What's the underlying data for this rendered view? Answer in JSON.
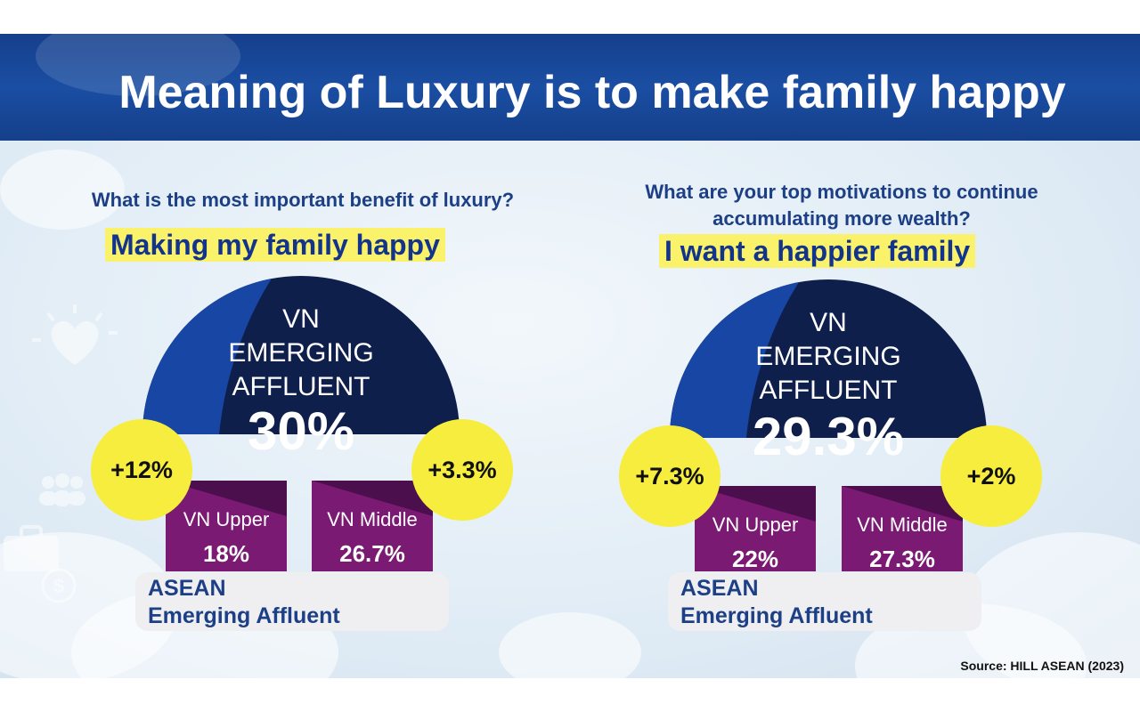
{
  "title": "Meaning of Luxury is to make family happy",
  "source": "Source: HILL ASEAN (2023)",
  "colors": {
    "banner": "#1a4ea3",
    "dome_navy": "#0f1f4b",
    "dome_accent_blue": "#1846a4",
    "bar_purple": "#7a1a73",
    "bubble_yellow": "#f6ed3e",
    "highlight_yellow": "#faf26a",
    "question_text": "#1c3f86"
  },
  "background_icons": [
    "heart-icon",
    "people-icon",
    "briefcase-icon",
    "dollar-coin-icon"
  ],
  "chart_data": [
    {
      "type": "bar",
      "question": "What is the most important benefit of luxury?",
      "answer": "Making my family happy",
      "main": {
        "label_lines": [
          "VN",
          "EMERGING",
          "AFFLUENT"
        ],
        "value": 30,
        "display": "30%"
      },
      "categories": [
        "VN Upper",
        "VN Middle"
      ],
      "values": [
        18,
        26.7
      ],
      "value_labels": [
        "18%",
        "26.7%"
      ],
      "differences": [
        "+12%",
        "+3.3%"
      ],
      "base_label_lines": [
        "ASEAN",
        "Emerging Affluent"
      ]
    },
    {
      "type": "bar",
      "question_lines": [
        "What are your top motivations to continue",
        "accumulating more wealth?"
      ],
      "answer": "I want a happier family",
      "main": {
        "label_lines": [
          "VN",
          "EMERGING",
          "AFFLUENT"
        ],
        "value": 29.3,
        "display": "29.3%"
      },
      "categories": [
        "VN Upper",
        "VN Middle"
      ],
      "values": [
        22,
        27.3
      ],
      "value_labels": [
        "22%",
        "27.3%"
      ],
      "differences": [
        "+7.3%",
        "+2%"
      ],
      "base_label_lines": [
        "ASEAN",
        "Emerging Affluent"
      ]
    }
  ]
}
